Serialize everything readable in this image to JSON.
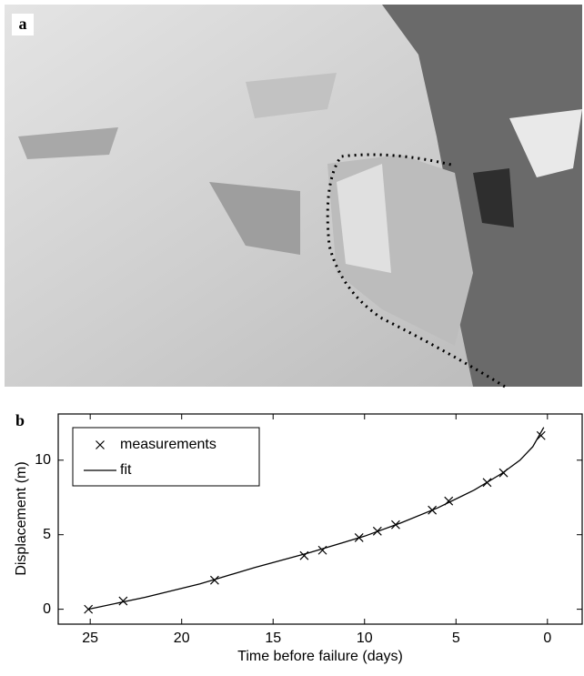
{
  "panel_a": {
    "label": "a"
  },
  "chart_data": {
    "type": "line",
    "panel_label": "b",
    "xlabel": "Time before failure (days)",
    "ylabel": "Displacement (m)",
    "xlim": [
      26.75,
      -1.9
    ],
    "xticks": [
      25,
      20,
      15,
      10,
      5,
      0
    ],
    "ylim": [
      -1,
      13.1
    ],
    "yticks": [
      0,
      5,
      10
    ],
    "legend": "upper-left",
    "series": [
      {
        "name": "measurements",
        "color": "#000000",
        "marker": "x",
        "x": [
          25.1,
          23.2,
          18.2,
          13.3,
          12.3,
          10.3,
          9.3,
          8.3,
          6.3,
          5.4,
          3.3,
          2.4,
          0.35
        ],
        "values": [
          0,
          0.55,
          1.95,
          3.6,
          3.96,
          4.8,
          5.24,
          5.67,
          6.65,
          7.26,
          8.5,
          9.15,
          11.65
        ]
      },
      {
        "name": "fit",
        "color": "#000000",
        "marker": "none",
        "x": [
          25.1,
          22,
          19,
          16,
          13,
          10,
          8,
          6,
          4,
          2.5,
          1.5,
          0.8,
          0.2
        ],
        "values": [
          0,
          0.8,
          1.7,
          2.8,
          3.8,
          4.9,
          5.8,
          6.8,
          8.0,
          9.1,
          10.0,
          10.9,
          12.2
        ]
      }
    ]
  }
}
